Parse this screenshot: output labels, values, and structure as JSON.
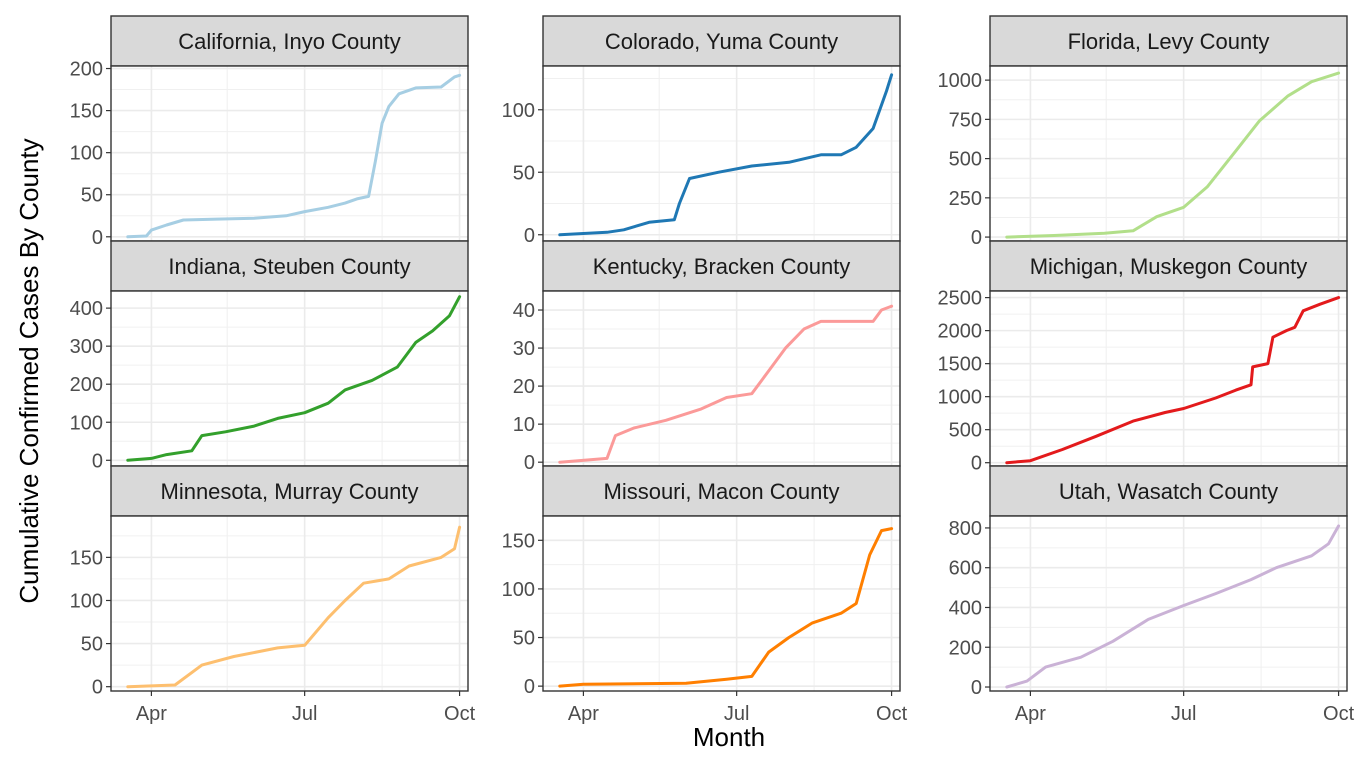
{
  "figure": {
    "xlabel": "Month",
    "ylabel": "Cumulative Confirmed Cases By County",
    "x_ticks": [
      "Apr",
      "Jul",
      "Oct"
    ]
  },
  "chart_data": [
    {
      "type": "line",
      "title": "California, Inyo County",
      "color": "#a6cee3",
      "x_range": [
        "2020-03-08",
        "2020-10-06"
      ],
      "ylim": [
        -5,
        203
      ],
      "y_ticks": [
        0,
        50,
        100,
        150,
        200
      ],
      "x": [
        "2020-03-18",
        "2020-03-29",
        "2020-04-01",
        "2020-04-10",
        "2020-04-20",
        "2020-05-10",
        "2020-06-01",
        "2020-06-20",
        "2020-07-01",
        "2020-07-15",
        "2020-07-25",
        "2020-08-01",
        "2020-08-08",
        "2020-08-12",
        "2020-08-16",
        "2020-08-20",
        "2020-08-26",
        "2020-09-05",
        "2020-09-20",
        "2020-09-28",
        "2020-10-01"
      ],
      "series": [
        {
          "values": [
            0,
            1,
            8,
            14,
            20,
            21,
            22,
            25,
            30,
            35,
            40,
            45,
            48,
            90,
            135,
            155,
            170,
            177,
            178,
            190,
            192
          ]
        }
      ]
    },
    {
      "type": "line",
      "title": "Colorado, Yuma County",
      "color": "#1f78b4",
      "x_range": [
        "2020-03-08",
        "2020-10-06"
      ],
      "ylim": [
        -5,
        135
      ],
      "y_ticks": [
        0,
        50,
        100
      ],
      "x": [
        "2020-03-18",
        "2020-04-15",
        "2020-04-25",
        "2020-05-10",
        "2020-05-25",
        "2020-05-28",
        "2020-06-03",
        "2020-06-20",
        "2020-07-10",
        "2020-08-01",
        "2020-08-20",
        "2020-09-01",
        "2020-09-10",
        "2020-09-20",
        "2020-09-28",
        "2020-10-01"
      ],
      "series": [
        {
          "values": [
            0,
            2,
            4,
            10,
            12,
            25,
            45,
            50,
            55,
            58,
            64,
            64,
            70,
            85,
            115,
            128
          ]
        }
      ]
    },
    {
      "type": "line",
      "title": "Florida, Levy County",
      "color": "#b2df8a",
      "x_range": [
        "2020-03-08",
        "2020-10-06"
      ],
      "ylim": [
        -25,
        1090
      ],
      "y_ticks": [
        0,
        250,
        500,
        750,
        1000
      ],
      "x": [
        "2020-03-18",
        "2020-04-15",
        "2020-05-15",
        "2020-06-01",
        "2020-06-15",
        "2020-07-01",
        "2020-07-15",
        "2020-08-01",
        "2020-08-15",
        "2020-09-01",
        "2020-09-15",
        "2020-10-01"
      ],
      "series": [
        {
          "values": [
            0,
            10,
            25,
            40,
            130,
            190,
            320,
            550,
            740,
            900,
            990,
            1045
          ]
        }
      ]
    },
    {
      "type": "line",
      "title": "Indiana, Steuben County",
      "color": "#33a02c",
      "x_range": [
        "2020-03-08",
        "2020-10-06"
      ],
      "ylim": [
        -15,
        445
      ],
      "y_ticks": [
        0,
        100,
        200,
        300,
        400
      ],
      "x": [
        "2020-03-18",
        "2020-04-01",
        "2020-04-10",
        "2020-04-25",
        "2020-05-01",
        "2020-05-15",
        "2020-06-01",
        "2020-06-15",
        "2020-07-01",
        "2020-07-15",
        "2020-07-25",
        "2020-08-10",
        "2020-08-25",
        "2020-09-05",
        "2020-09-15",
        "2020-09-25",
        "2020-10-01"
      ],
      "series": [
        {
          "values": [
            0,
            5,
            15,
            25,
            65,
            75,
            90,
            110,
            125,
            150,
            185,
            210,
            245,
            310,
            340,
            380,
            430
          ]
        }
      ]
    },
    {
      "type": "line",
      "title": "Kentucky, Bracken County",
      "color": "#fb9a99",
      "x_range": [
        "2020-03-08",
        "2020-10-06"
      ],
      "ylim": [
        -1,
        45
      ],
      "y_ticks": [
        0,
        10,
        20,
        30,
        40
      ],
      "x": [
        "2020-03-18",
        "2020-04-15",
        "2020-04-20",
        "2020-05-01",
        "2020-05-20",
        "2020-06-10",
        "2020-06-25",
        "2020-07-10",
        "2020-07-20",
        "2020-07-30",
        "2020-08-10",
        "2020-08-20",
        "2020-09-20",
        "2020-09-25",
        "2020-10-01"
      ],
      "series": [
        {
          "values": [
            0,
            1,
            7,
            9,
            11,
            14,
            17,
            18,
            24,
            30,
            35,
            37,
            37,
            40,
            41
          ]
        }
      ]
    },
    {
      "type": "line",
      "title": "Michigan, Muskegon County",
      "color": "#e31a1c",
      "x_range": [
        "2020-03-08",
        "2020-10-06"
      ],
      "ylim": [
        -50,
        2600
      ],
      "y_ticks": [
        0,
        500,
        1000,
        1500,
        2000,
        2500
      ],
      "x": [
        "2020-03-18",
        "2020-04-01",
        "2020-04-20",
        "2020-05-10",
        "2020-06-01",
        "2020-06-20",
        "2020-07-01",
        "2020-07-20",
        "2020-08-01",
        "2020-08-10",
        "2020-08-11",
        "2020-08-20",
        "2020-08-23",
        "2020-08-31",
        "2020-09-05",
        "2020-09-10",
        "2020-09-20",
        "2020-10-01"
      ],
      "series": [
        {
          "values": [
            0,
            30,
            200,
            400,
            630,
            760,
            820,
            980,
            1100,
            1180,
            1450,
            1500,
            1900,
            2000,
            2050,
            2300,
            2400,
            2500
          ]
        }
      ]
    },
    {
      "type": "line",
      "title": "Minnesota, Murray County",
      "color": "#fdbf6f",
      "x_range": [
        "2020-03-08",
        "2020-10-06"
      ],
      "ylim": [
        -5,
        198
      ],
      "y_ticks": [
        0,
        50,
        100,
        150
      ],
      "x": [
        "2020-03-18",
        "2020-04-15",
        "2020-05-01",
        "2020-05-20",
        "2020-06-15",
        "2020-07-01",
        "2020-07-15",
        "2020-07-25",
        "2020-08-05",
        "2020-08-20",
        "2020-09-01",
        "2020-09-20",
        "2020-09-28",
        "2020-10-01"
      ],
      "series": [
        {
          "values": [
            0,
            2,
            25,
            35,
            45,
            48,
            80,
            100,
            120,
            125,
            140,
            150,
            160,
            185
          ]
        }
      ]
    },
    {
      "type": "line",
      "title": "Missouri, Macon County",
      "color": "#ff7f00",
      "x_range": [
        "2020-03-08",
        "2020-10-06"
      ],
      "ylim": [
        -5,
        175
      ],
      "y_ticks": [
        0,
        50,
        100,
        150
      ],
      "x": [
        "2020-03-18",
        "2020-04-01",
        "2020-06-01",
        "2020-06-25",
        "2020-07-10",
        "2020-07-20",
        "2020-08-01",
        "2020-08-15",
        "2020-09-01",
        "2020-09-10",
        "2020-09-18",
        "2020-09-25",
        "2020-10-01"
      ],
      "series": [
        {
          "values": [
            0,
            2,
            3,
            7,
            10,
            35,
            50,
            65,
            75,
            85,
            135,
            160,
            162
          ]
        }
      ]
    },
    {
      "type": "line",
      "title": "Utah, Wasatch County",
      "color": "#cab2d6",
      "x_range": [
        "2020-03-08",
        "2020-10-06"
      ],
      "ylim": [
        -20,
        860
      ],
      "y_ticks": [
        0,
        200,
        400,
        600,
        800
      ],
      "x": [
        "2020-03-18",
        "2020-03-30",
        "2020-04-10",
        "2020-05-01",
        "2020-05-20",
        "2020-06-10",
        "2020-07-01",
        "2020-07-20",
        "2020-08-10",
        "2020-08-25",
        "2020-09-15",
        "2020-09-25",
        "2020-10-01"
      ],
      "series": [
        {
          "values": [
            0,
            30,
            100,
            150,
            230,
            340,
            410,
            470,
            540,
            600,
            660,
            720,
            810
          ]
        }
      ]
    }
  ]
}
